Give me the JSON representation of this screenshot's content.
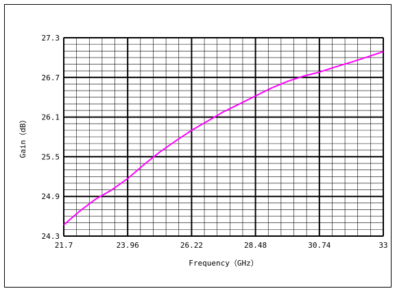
{
  "chart_data": {
    "type": "line",
    "xlabel": "Frequency（GHz）",
    "ylabel": "Gain（dB）",
    "xlim": [
      21.7,
      33
    ],
    "ylim": [
      24.3,
      27.3
    ],
    "x_tick_labels": [
      "21.7",
      "23.96",
      "26.22",
      "28.48",
      "30.74",
      "33"
    ],
    "y_tick_labels": [
      "24.3",
      "24.9",
      "25.5",
      "26.1",
      "26.7",
      "27.3"
    ],
    "grid": true,
    "series": [
      {
        "color": "#ff00ff",
        "x": [
          21.7,
          22.27,
          22.83,
          23.4,
          23.96,
          24.53,
          25.09,
          25.66,
          26.22,
          26.79,
          27.35,
          27.92,
          28.48,
          29.05,
          29.61,
          30.18,
          30.74,
          31.31,
          31.87,
          32.44,
          33.0
        ],
        "y": [
          24.47,
          24.68,
          24.86,
          25.0,
          25.17,
          25.38,
          25.57,
          25.74,
          25.9,
          26.04,
          26.18,
          26.3,
          26.42,
          26.54,
          26.64,
          26.72,
          26.78,
          26.86,
          26.93,
          27.01,
          27.09
        ]
      }
    ]
  }
}
